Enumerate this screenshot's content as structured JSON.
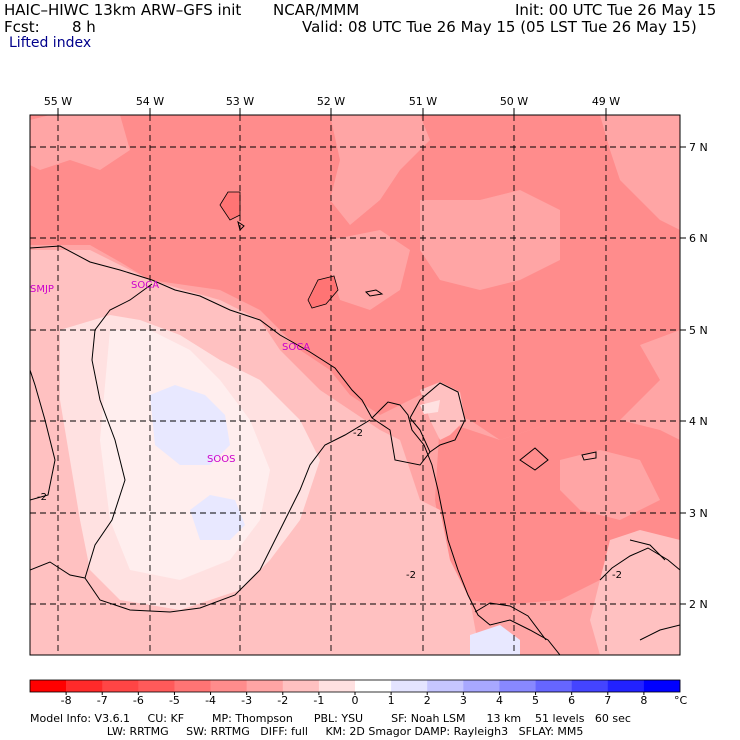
{
  "header": {
    "model": "HAIC–HIWC 13km ARW–GFS init",
    "center": "NCAR/MMM",
    "init": "Init: 00 UTC Tue 26 May 15",
    "fcst_label": "Fcst:",
    "fcst_value": "8 h",
    "valid": "Valid: 08 UTC Tue 26 May 15 (05 LST Tue 26 May 15)",
    "field": "Lifted index"
  },
  "map": {
    "lon_labels": [
      "55 W",
      "54 W",
      "53 W",
      "52 W",
      "51 W",
      "50 W",
      "49 W"
    ],
    "lat_labels": [
      "7 N",
      "6 N",
      "5 N",
      "4 N",
      "3 N",
      "2 N"
    ],
    "stations": [
      "SMJP",
      "SOCA",
      "SOCA",
      "SOOS"
    ],
    "contour_labels": [
      "-2",
      "-2",
      "-2",
      "-2",
      "-2"
    ]
  },
  "colorbar": {
    "ticks": [
      "-8",
      "-7",
      "-6",
      "-5",
      "-4",
      "-3",
      "-2",
      "-1",
      "0",
      "1",
      "2",
      "3",
      "4",
      "5",
      "6",
      "7",
      "8"
    ],
    "unit": "°C",
    "colors": [
      "#ff0000",
      "#ff2a2a",
      "#ff4545",
      "#ff5a5a",
      "#ff7474",
      "#ff8c8c",
      "#ffa5a5",
      "#ffc1c1",
      "#ffe1e1",
      "#ffffff",
      "#e4e4ff",
      "#c6c6ff",
      "#a8a8ff",
      "#8888ff",
      "#6666ff",
      "#4444ff",
      "#2222ff",
      "#0000ff"
    ]
  },
  "footer": {
    "line1": "Model Info: V3.6.1     CU: KF        MP: Thompson      PBL: YSU        SF: Noah LSM      13 km    51 levels   60 sec",
    "line2": "                      LW: RRTMG     SW: RRTMG   DIFF: full     KM: 2D Smagor DAMP: Rayleigh3   SFLAY: MM5"
  }
}
